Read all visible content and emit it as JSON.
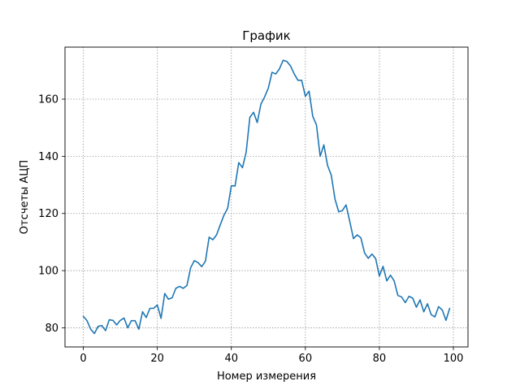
{
  "chart_data": {
    "type": "line",
    "title": "График",
    "xlabel": "Номер измерения",
    "ylabel": "Отсчеты АЦП",
    "xlim": [
      -4.95,
      103.95
    ],
    "ylim": [
      73.3,
      178.2
    ],
    "xticks": [
      0,
      20,
      40,
      60,
      80,
      100
    ],
    "yticks": [
      80,
      100,
      120,
      140,
      160
    ],
    "grid": true,
    "line_color": "#1f77b4",
    "series": [
      {
        "x": [
          0,
          1,
          2,
          3,
          4,
          5,
          6,
          7,
          8,
          9,
          10,
          11,
          12,
          13,
          14,
          15,
          16,
          17,
          18,
          19,
          20,
          21,
          22,
          23,
          24,
          25,
          26,
          27,
          28,
          29,
          30,
          31,
          32,
          33,
          34,
          35,
          36,
          37,
          38,
          39,
          40,
          41,
          42,
          43,
          44,
          45,
          46,
          47,
          48,
          49,
          50,
          51,
          52,
          53,
          54,
          55,
          56,
          57,
          58,
          59,
          60,
          61,
          62,
          63,
          64,
          65,
          66,
          67,
          68,
          69,
          70,
          71,
          72,
          73,
          74,
          75,
          76,
          77,
          78,
          79,
          80,
          81,
          82,
          83,
          84,
          85,
          86,
          87,
          88,
          89,
          90,
          91,
          92,
          93,
          94,
          95,
          96,
          97,
          98,
          99
        ],
        "values": [
          84,
          82.5,
          79.5,
          78,
          80.5,
          80.8,
          79,
          82.8,
          82.6,
          81,
          82.6,
          83.4,
          80,
          82.5,
          82.5,
          79.5,
          85.6,
          83.6,
          86.8,
          86.8,
          88,
          83.3,
          92,
          90,
          90.5,
          93.8,
          94.5,
          93.8,
          94.8,
          101,
          103.5,
          102.8,
          101.4,
          103.3,
          111.7,
          110.8,
          112.5,
          116,
          119.4,
          121.8,
          129.7,
          129.6,
          137.8,
          136,
          141.4,
          153.6,
          155.4,
          151.8,
          158.3,
          160.8,
          163.9,
          169.4,
          168.8,
          170.6,
          173.6,
          173.2,
          171.6,
          168.8,
          166.6,
          166.6,
          161,
          162.8,
          154,
          151,
          140,
          144,
          136.8,
          133.4,
          125.1,
          120.6,
          121,
          123,
          117.2,
          111.2,
          112.5,
          111.5,
          106.2,
          104.3,
          105.8,
          104.2,
          98.1,
          101.5,
          96.4,
          98.4,
          96.4,
          91.3,
          90.8,
          88.8,
          91,
          90.4,
          87.2,
          89.8,
          85.6,
          88.4,
          84.6,
          83.8,
          87.4,
          86.2,
          82.6,
          86.8
        ]
      }
    ]
  }
}
